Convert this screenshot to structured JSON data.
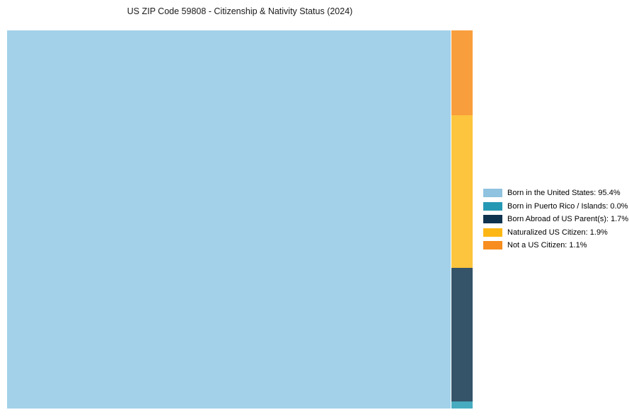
{
  "chart_data": {
    "type": "treemap",
    "title": "US ZIP Code 59808 - Citizenship & Nativity Status (2024)",
    "unit": "%",
    "legend_position": "right",
    "layout_hint": "single large tile on left (95.4%), remaining categories stacked in narrow right column (top to bottom: Not a US Citizen, Naturalized US Citizen, Born Abroad of US Parent(s), Born in Puerto Rico / Islands)",
    "items": [
      {
        "label": "Born in the United States",
        "value": 95.4,
        "display": "Born in the United States: 95.4%",
        "swatch_color": "#8FC3DF",
        "tile_color": "#A3D1E9"
      },
      {
        "label": "Born in Puerto Rico / Islands",
        "value": 0.0,
        "display": "Born in Puerto Rico / Islands: 0.0%",
        "swatch_color": "#2598B4",
        "tile_color": "#48ACC0"
      },
      {
        "label": "Born Abroad of US Parent(s)",
        "value": 1.7,
        "display": "Born Abroad of US Parent(s): 1.7%",
        "swatch_color": "#0F334E",
        "tile_color": "#365469"
      },
      {
        "label": "Naturalized US Citizen",
        "value": 1.9,
        "display": "Naturalized US Citizen: 1.9%",
        "swatch_color": "#FDB714",
        "tile_color": "#FDC43D"
      },
      {
        "label": "Not a US Citizen",
        "value": 1.1,
        "display": "Not a US Citizen: 1.1%",
        "swatch_color": "#F78D1E",
        "tile_color": "#F99E3C"
      }
    ]
  }
}
